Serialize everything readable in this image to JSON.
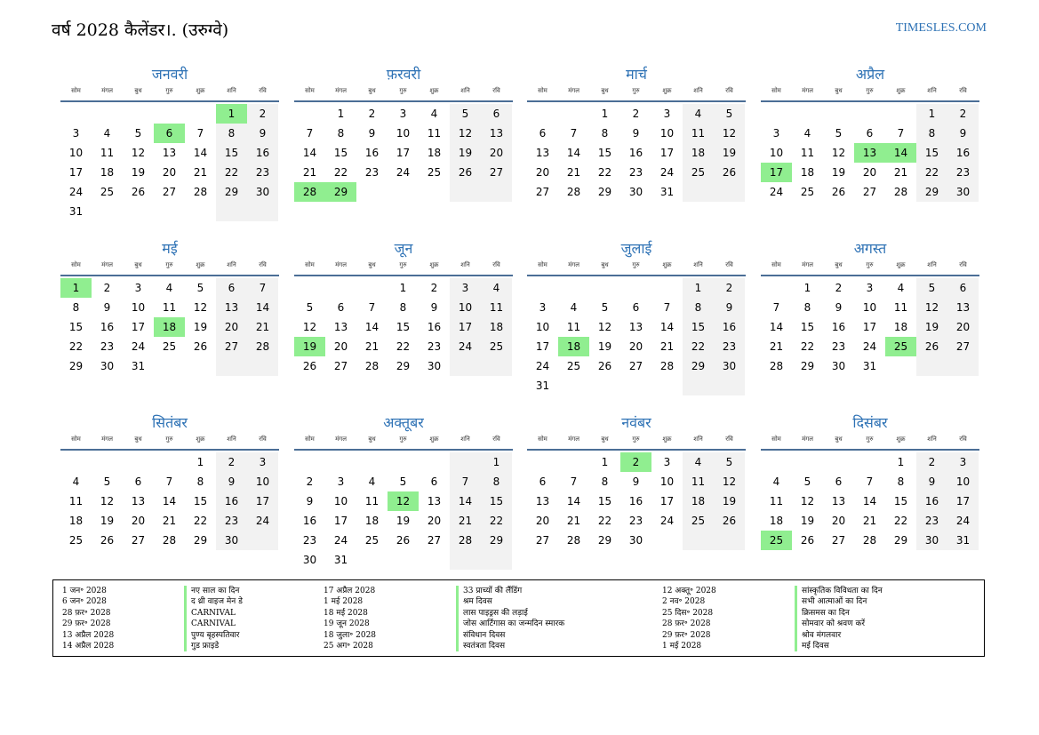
{
  "header": {
    "title": "वर्ष 2028 कैलेंडर।. (उरुग्वे)",
    "site": "TIMESLES.COM"
  },
  "weekdays": [
    "सोम",
    "मंगल",
    "बुध",
    "गुरु",
    "शुक्र",
    "शनि",
    "रवि"
  ],
  "months": [
    {
      "name": "जनवरी",
      "offset": 5,
      "days": 31,
      "holidays": [
        1,
        6
      ]
    },
    {
      "name": "फ़रवरी",
      "offset": 1,
      "days": 29,
      "holidays": [
        28,
        29
      ]
    },
    {
      "name": "मार्च",
      "offset": 2,
      "days": 31,
      "holidays": []
    },
    {
      "name": "अप्रैल",
      "offset": 5,
      "days": 30,
      "holidays": [
        13,
        14,
        17
      ]
    },
    {
      "name": "मई",
      "offset": 0,
      "days": 31,
      "holidays": [
        1,
        18
      ]
    },
    {
      "name": "जून",
      "offset": 3,
      "days": 30,
      "holidays": [
        19
      ]
    },
    {
      "name": "जुलाई",
      "offset": 5,
      "days": 31,
      "holidays": [
        18
      ]
    },
    {
      "name": "अगस्त",
      "offset": 1,
      "days": 31,
      "holidays": [
        25
      ]
    },
    {
      "name": "सितंबर",
      "offset": 4,
      "days": 30,
      "holidays": []
    },
    {
      "name": "अक्तूबर",
      "offset": 6,
      "days": 31,
      "holidays": [
        12
      ]
    },
    {
      "name": "नवंबर",
      "offset": 2,
      "days": 30,
      "holidays": [
        2
      ]
    },
    {
      "name": "दिसंबर",
      "offset": 4,
      "days": 31,
      "holidays": [
        25
      ]
    }
  ],
  "legend": {
    "col1_dates": [
      "1 जन॰ 2028",
      "6 जन॰ 2028",
      "28 फ़र॰ 2028",
      "29 फ़र॰ 2028",
      "13 अप्रैल 2028",
      "14 अप्रैल 2028"
    ],
    "col1_names": [
      "नए साल का दिन",
      "द थ्री वाइज मेन डे",
      "CARNIVAL",
      "CARNIVAL",
      "पुण्य बृहस्पतिवार",
      "गुड फ्राइडे"
    ],
    "col2_dates": [
      "17 अप्रैल 2028",
      "1 मई 2028",
      "18 मई 2028",
      "19 जून 2028",
      "18 जुला॰ 2028",
      "25 अग॰ 2028"
    ],
    "col2_names": [
      "33 प्राच्यों की लैंडिंग",
      "श्रम दिवस",
      "लास पाइड्रस की लड़ाई",
      "जोस आर्टिगास का जन्मदिन स्मारक",
      "संविधान दिवस",
      "स्वतंत्रता दिवस"
    ],
    "col3_dates": [
      "12 अक्तू॰ 2028",
      "2 नव॰ 2028",
      "25 दिस॰ 2028",
      "28 फ़र॰ 2028",
      "29 फ़र॰ 2028",
      "1 मई 2028"
    ],
    "col3_names": [
      "सांस्कृतिक विविधता का दिन",
      "सभी आत्माओं का दिन",
      "क्रिसमस का दिन",
      "सोमवार को श्रवण करें",
      "श्रोव मंगलवार",
      "मई दिवस"
    ]
  },
  "colors": {
    "accent": "#2e72b5",
    "holiday": "#90ee90",
    "weekend": "#f2f2f2",
    "rule": "#4b6e96"
  }
}
